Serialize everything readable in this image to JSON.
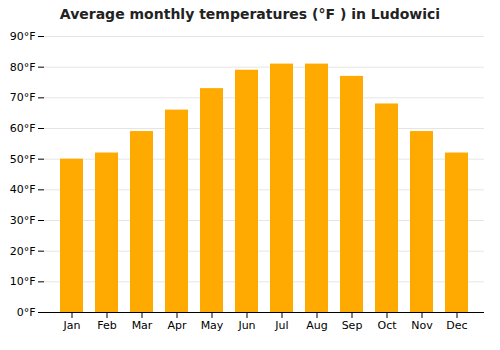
{
  "chart_data": {
    "type": "bar",
    "title": "Average monthly temperatures (°F ) in Ludowici",
    "categories": [
      "Jan",
      "Feb",
      "Mar",
      "Apr",
      "May",
      "Jun",
      "Jul",
      "Aug",
      "Sep",
      "Oct",
      "Nov",
      "Dec"
    ],
    "values": [
      50,
      52,
      59,
      66,
      73,
      79,
      81,
      81,
      77,
      68,
      59,
      52
    ],
    "color": "#FFAA00",
    "ylim": [
      0,
      90
    ],
    "yticks": [
      {
        "value": 0,
        "label": "0°F"
      },
      {
        "value": 10,
        "label": "10°F"
      },
      {
        "value": 20,
        "label": "20°F"
      },
      {
        "value": 30,
        "label": "30°F"
      },
      {
        "value": 40,
        "label": "40°F"
      },
      {
        "value": 50,
        "label": "50°F"
      },
      {
        "value": 60,
        "label": "60°F"
      },
      {
        "value": 70,
        "label": "70°F"
      },
      {
        "value": 80,
        "label": "80°F"
      },
      {
        "value": 90,
        "label": "90°F"
      }
    ],
    "grid": true
  }
}
